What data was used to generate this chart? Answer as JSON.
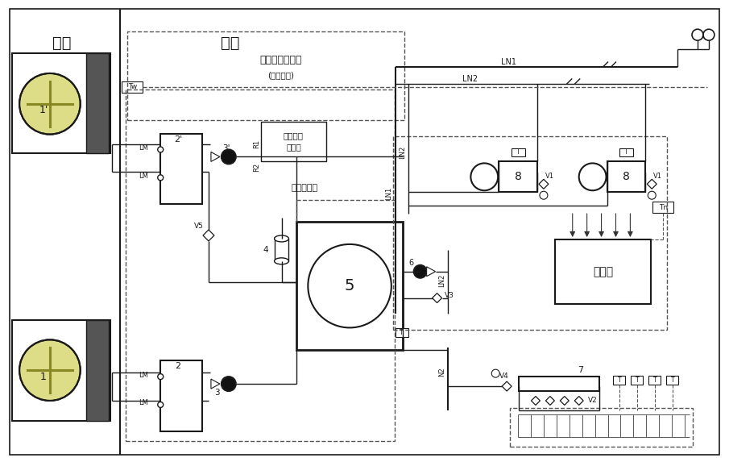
{
  "bg": "white",
  "lc": "#1a1a1a",
  "dc": "#555555",
  "text_outdoor": "室外",
  "text_indoor": "室内",
  "text_indirect": "(间接加热)",
  "text_hw_tank": "接生活热水水笱",
  "text_hw_ctrl_1": "生活热水",
  "text_hw_ctrl_2": "控制器",
  "text_tap_water": "自来水补水",
  "text_ctrl": "控制器",
  "fan_color": "#dddd88",
  "fan_dark": "#888822",
  "gray_block": "#555555"
}
